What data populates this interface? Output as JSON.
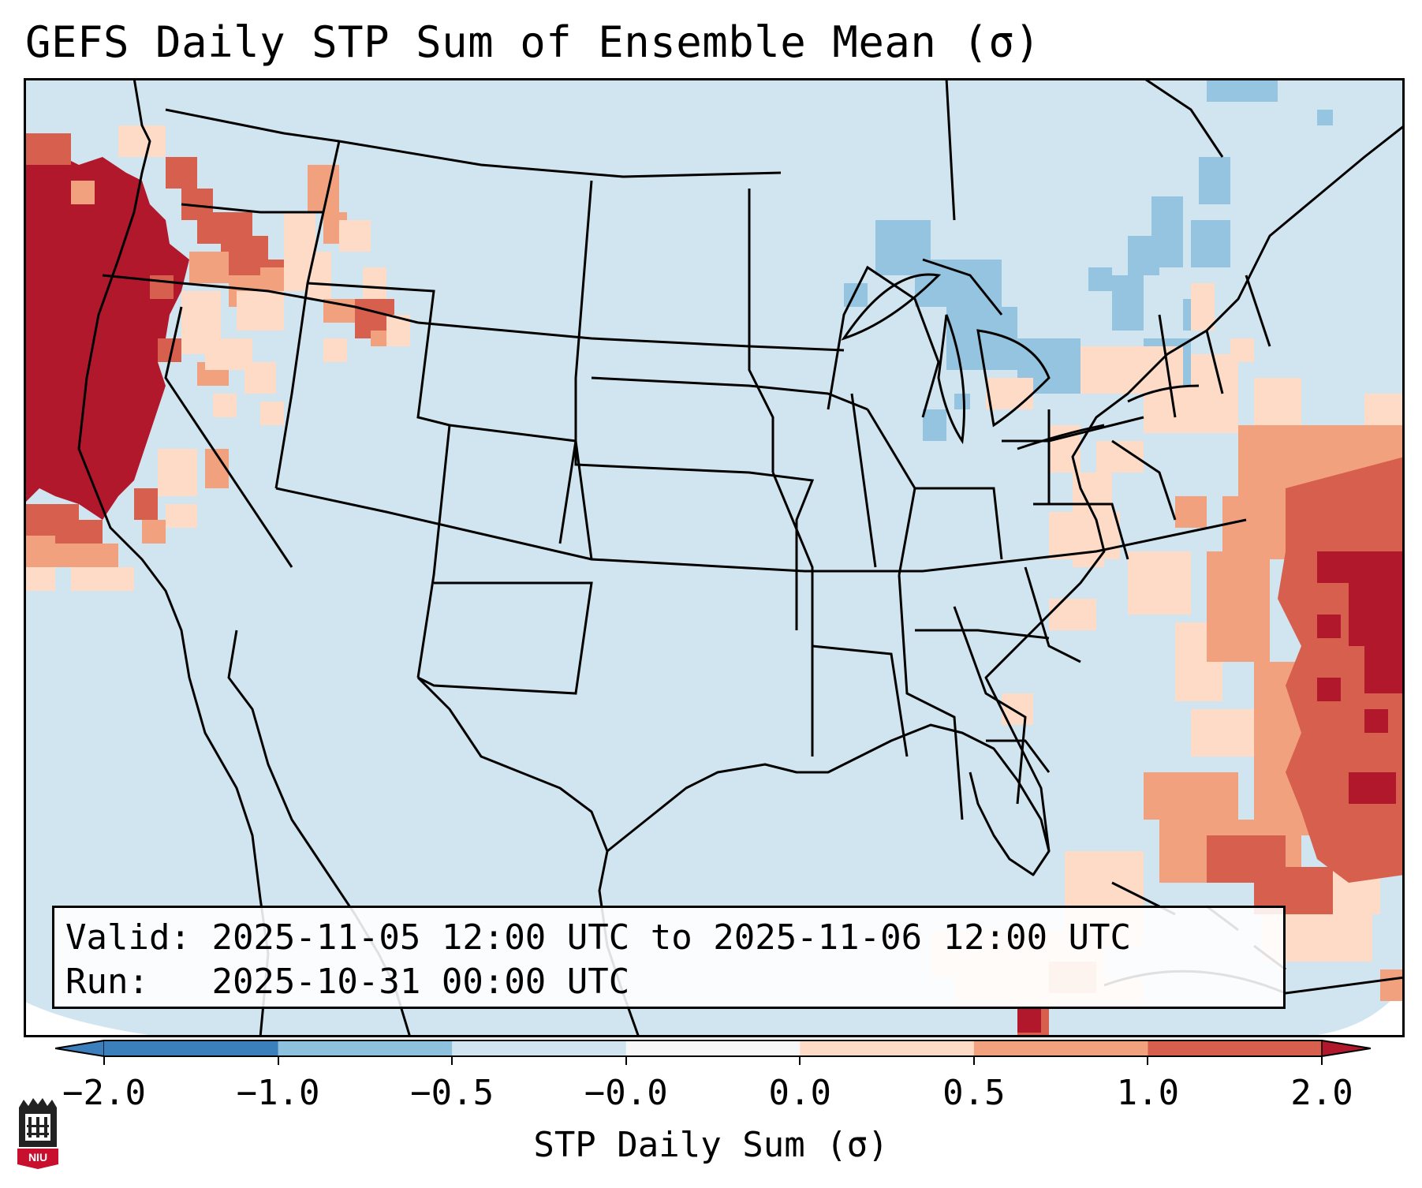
{
  "title": "GEFS Daily STP Sum of Ensemble Mean (σ)",
  "info": {
    "valid_label": "Valid:",
    "valid_value": "2025-11-05 12:00 UTC to 2025-11-06 12:00 UTC",
    "run_label": "Run:",
    "run_value": "2025-10-31 00:00 UTC"
  },
  "colorbar": {
    "label": "STP Daily Sum (σ)",
    "ticks": [
      "−2.0",
      "−1.0",
      "−0.5",
      "−0.0",
      "0.0",
      "0.5",
      "1.0",
      "2.0"
    ],
    "colors": [
      "#3b7fbd",
      "#8ec1de",
      "#d1e5f0",
      "#f7f7f7",
      "#fddbc7",
      "#f2a17f",
      "#d6604d",
      "#b2182b"
    ],
    "extend": "both"
  },
  "map": {
    "region": "Continental United States",
    "background_color": "#d1e5f0",
    "anomalies": [
      {
        "region": "Pacific Northwest / California coast",
        "level": "2.0"
      },
      {
        "region": "Western Atlantic off Southeast US",
        "level": "2.0"
      },
      {
        "region": "Great Lakes / Northeast",
        "level": "−0.5"
      },
      {
        "region": "Florida Straits / Bahamas",
        "level": "1.0"
      }
    ]
  },
  "logo": {
    "text": "NIU",
    "color": "#c8102e"
  }
}
